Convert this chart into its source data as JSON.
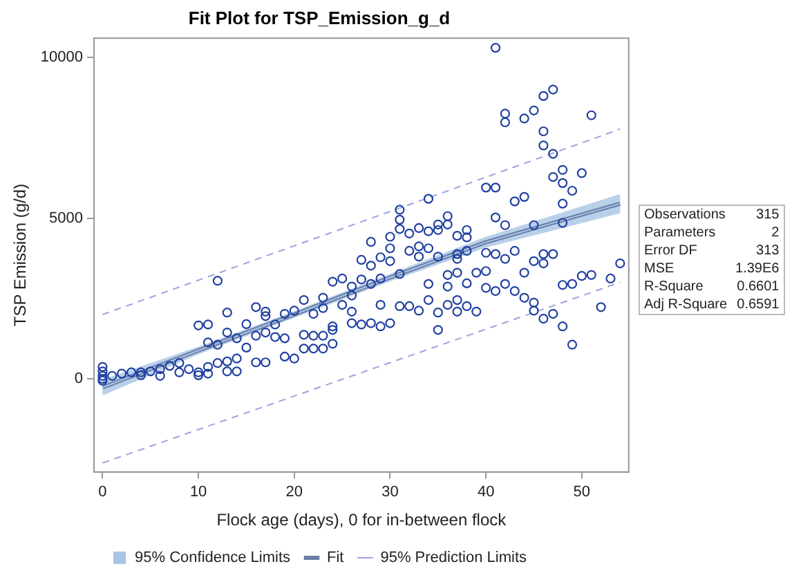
{
  "chart_data": {
    "type": "scatter",
    "title": "Fit Plot for TSP_Emission_g_d",
    "xlabel": "Flock age (days), 0 for in-between flock",
    "ylabel": "TSP Emission (g/d)",
    "xlim": [
      -0.9,
      54.9
    ],
    "ylim": [
      -2900,
      10600
    ],
    "xticks": [
      0,
      10,
      20,
      30,
      40,
      50
    ],
    "yticks": [
      0,
      5000,
      10000
    ],
    "grid": false,
    "legend": "bottom",
    "annotations": [
      "Observations 315",
      "Parameters 2",
      "Error DF 313",
      "MSE 1.39E6",
      "R-Square 0.6601",
      "Adj R-Square 0.6591"
    ],
    "series": [
      {
        "type": "scatter",
        "color": "#1f3fa0",
        "marker": "circle",
        "x": [
          41,
          47,
          46,
          42,
          42,
          44,
          45,
          51,
          46,
          46,
          47,
          48,
          47,
          48,
          50,
          49,
          48,
          48,
          45,
          41,
          42,
          40,
          41,
          43,
          44,
          34,
          31,
          31,
          31,
          30,
          33,
          34,
          35,
          36,
          35,
          36,
          38,
          38,
          37,
          28,
          32,
          30,
          29,
          30,
          27,
          28,
          31,
          32,
          33,
          34,
          33,
          35,
          37,
          37,
          38,
          40,
          41,
          42,
          43,
          45,
          46,
          47,
          46,
          34,
          36,
          37,
          38,
          39,
          40,
          40,
          41,
          42,
          43,
          44,
          44,
          45,
          45,
          46,
          47,
          48,
          49,
          48,
          49,
          50,
          51,
          52,
          53,
          54,
          35,
          35,
          36,
          37,
          37,
          38,
          39,
          36,
          34,
          33,
          32,
          31,
          29,
          28,
          29,
          27,
          26,
          26,
          25,
          24,
          25,
          26,
          26,
          27,
          28,
          29,
          30,
          24,
          24,
          24,
          23,
          23,
          22,
          21,
          20,
          19,
          18,
          17,
          17,
          16,
          15,
          13,
          13,
          11,
          10,
          11,
          12,
          14,
          16,
          17,
          18,
          19,
          19,
          20,
          21,
          22,
          23,
          21,
          22,
          23,
          15,
          17,
          16,
          14,
          13,
          12,
          11,
          10,
          9,
          8,
          7,
          6,
          5,
          4,
          3,
          2,
          1,
          0,
          0,
          0,
          0,
          0,
          8,
          10,
          6,
          4,
          13,
          14,
          11,
          12
        ],
        "values": [
          10300,
          9000,
          8800,
          8250,
          7980,
          8100,
          8350,
          8200,
          7700,
          7260,
          7000,
          6500,
          6280,
          6090,
          6400,
          5850,
          5450,
          4850,
          4780,
          5020,
          4780,
          5950,
          5950,
          5520,
          5660,
          5600,
          5260,
          4950,
          4660,
          4420,
          4690,
          4590,
          4800,
          5060,
          4630,
          4800,
          4630,
          4400,
          4450,
          4260,
          3980,
          4060,
          3780,
          3660,
          3700,
          3520,
          3260,
          4520,
          4120,
          4060,
          3800,
          3800,
          3880,
          3730,
          3980,
          3920,
          3880,
          3730,
          3980,
          3660,
          3880,
          3880,
          3590,
          2950,
          3230,
          3300,
          2970,
          3300,
          3350,
          2830,
          2730,
          2950,
          2730,
          3300,
          2520,
          2370,
          2120,
          1870,
          2020,
          1630,
          1060,
          2920,
          2950,
          3200,
          3230,
          2230,
          3120,
          3590,
          2060,
          1520,
          2300,
          2450,
          2090,
          2260,
          2090,
          2870,
          2450,
          2120,
          2260,
          2260,
          2300,
          2950,
          3120,
          3090,
          2870,
          2590,
          3120,
          3020,
          2300,
          2090,
          1730,
          1690,
          1730,
          1630,
          1730,
          1630,
          1090,
          1520,
          2520,
          2200,
          2020,
          2450,
          2120,
          2020,
          1690,
          2090,
          1950,
          2230,
          1700,
          2060,
          1440,
          1690,
          1660,
          1130,
          1060,
          1260,
          1340,
          1440,
          1300,
          1260,
          690,
          630,
          940,
          940,
          940,
          1370,
          1340,
          1340,
          970,
          510,
          510,
          630,
          540,
          490,
          370,
          200,
          300,
          490,
          400,
          300,
          230,
          200,
          200,
          160,
          90,
          370,
          230,
          90,
          0,
          -60,
          200,
          110,
          90,
          110,
          230,
          230,
          160,
          3050
        ]
      },
      {
        "type": "line",
        "name": "Fit",
        "color": "#6a7fa8",
        "line_style": "solid",
        "x": [
          0,
          10,
          20,
          30,
          40,
          54
        ],
        "values": [
          -270,
          880,
          2000,
          3150,
          4250,
          5450
        ]
      },
      {
        "type": "line",
        "name": "95% Confidence Limits",
        "color": "#a9c4e4",
        "x": [
          0,
          10,
          20,
          30,
          40,
          54
        ],
        "values": [
          -270,
          880,
          2000,
          3150,
          4250,
          5450
        ],
        "lower": [
          -520,
          760,
          1900,
          3030,
          4080,
          5150
        ],
        "upper": [
          -20,
          1000,
          2100,
          3270,
          4420,
          5750
        ]
      },
      {
        "type": "line",
        "name": "95% Prediction Limits",
        "color": "#9aa3e0",
        "line_style": "dashed",
        "x": [
          0,
          54
        ],
        "values": [
          2000,
          7770
        ]
      },
      {
        "type": "line",
        "color": "#9aa3e0",
        "line_style": "dashed",
        "x": [
          0,
          54
        ],
        "values": [
          -2620,
          3000
        ]
      }
    ]
  }
}
